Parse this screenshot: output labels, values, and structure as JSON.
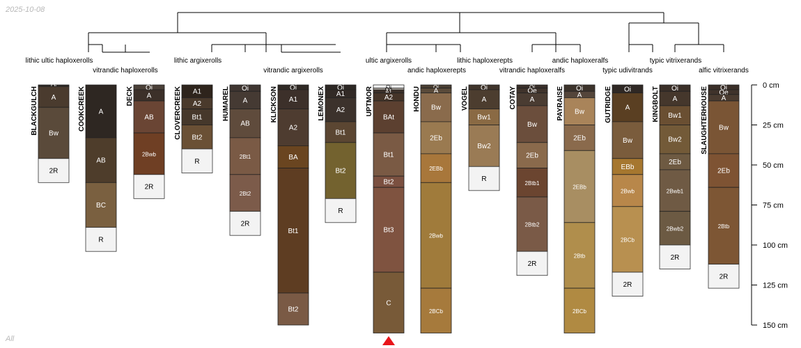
{
  "header": {
    "date": "2025-10-08"
  },
  "footer": {
    "label": "All"
  },
  "depth_axis": {
    "unit": "cm",
    "max": 150,
    "ticks": [
      {
        "value": 0,
        "label": "0 cm"
      },
      {
        "value": 25,
        "label": "25 cm"
      },
      {
        "value": 50,
        "label": "50 cm"
      },
      {
        "value": 75,
        "label": "75 cm"
      },
      {
        "value": 100,
        "label": "100 cm"
      },
      {
        "value": 125,
        "label": "125 cm"
      },
      {
        "value": 150,
        "label": "150 cm"
      }
    ]
  },
  "taxa_labels": [
    {
      "text": "lithic ultic haploxerolls"
    },
    {
      "text": "vitrandic haploxerolls"
    },
    {
      "text": "lithic argixerolls"
    },
    {
      "text": "vitrandic argixerolls"
    },
    {
      "text": "ultic argixerolls"
    },
    {
      "text": "andic haploxerepts"
    },
    {
      "text": "lithic haploxerepts"
    },
    {
      "text": "vitrandic haploxeralfs"
    },
    {
      "text": "andic haploxeralfs"
    },
    {
      "text": "typic udivitrands"
    },
    {
      "text": "typic vitrixerands"
    },
    {
      "text": "alfic vitrixerands"
    }
  ],
  "marker": {
    "profile": "UPTMOR",
    "color": "#e8141a"
  },
  "profiles": [
    {
      "name": "BLACKGULCH",
      "horizons": [
        {
          "name": "Oi",
          "top": 0,
          "bottom": 1,
          "color": "#2f2a25"
        },
        {
          "name": "A",
          "top": 1,
          "bottom": 14,
          "color": "#4a3b2e"
        },
        {
          "name": "Bw",
          "top": 14,
          "bottom": 46,
          "color": "#5a4a3a"
        },
        {
          "name": "2R",
          "top": 46,
          "bottom": 61,
          "color": "#f3f3f3"
        }
      ]
    },
    {
      "name": "COOKCREEK",
      "horizons": [
        {
          "name": "A",
          "top": 0,
          "bottom": 33,
          "color": "#2e2722"
        },
        {
          "name": "AB",
          "top": 33,
          "bottom": 61,
          "color": "#4e3d2b"
        },
        {
          "name": "BC",
          "top": 61,
          "bottom": 89,
          "color": "#7a6040"
        },
        {
          "name": "R",
          "top": 89,
          "bottom": 104,
          "color": "#f3f3f3"
        }
      ]
    },
    {
      "name": "DECK",
      "horizons": [
        {
          "name": "Oi",
          "top": 0,
          "bottom": 3,
          "color": "#4a4038"
        },
        {
          "name": "A",
          "top": 3,
          "bottom": 10,
          "color": "#3c3029"
        },
        {
          "name": "AB",
          "top": 10,
          "bottom": 30,
          "color": "#6a4534"
        },
        {
          "name": "2Bwb",
          "top": 30,
          "bottom": 56,
          "color": "#6f3f24"
        },
        {
          "name": "2R",
          "top": 56,
          "bottom": 71,
          "color": "#f3f3f3"
        }
      ]
    },
    {
      "name": "CLOVERCREEK",
      "horizons": [
        {
          "name": "A1",
          "top": 0,
          "bottom": 8,
          "color": "#2e241c"
        },
        {
          "name": "A2",
          "top": 8,
          "bottom": 15,
          "color": "#4a3a2c"
        },
        {
          "name": "Bt1",
          "top": 15,
          "bottom": 25,
          "color": "#46382b"
        },
        {
          "name": "Bt2",
          "top": 25,
          "bottom": 40,
          "color": "#6a5035"
        },
        {
          "name": "R",
          "top": 40,
          "bottom": 55,
          "color": "#f3f3f3"
        }
      ]
    },
    {
      "name": "HUMAREL",
      "horizons": [
        {
          "name": "Oi",
          "top": 0,
          "bottom": 4,
          "color": "#3f3631"
        },
        {
          "name": "A",
          "top": 4,
          "bottom": 15,
          "color": "#453a33"
        },
        {
          "name": "AB",
          "top": 15,
          "bottom": 33,
          "color": "#5f4b3c"
        },
        {
          "name": "2Bt1",
          "top": 33,
          "bottom": 56,
          "color": "#7a5a45"
        },
        {
          "name": "2Bt2",
          "top": 56,
          "bottom": 79,
          "color": "#7c5b4a"
        },
        {
          "name": "2R",
          "top": 79,
          "bottom": 94,
          "color": "#f3f3f3"
        }
      ]
    },
    {
      "name": "KLICKSON",
      "horizons": [
        {
          "name": "Oi",
          "top": 0,
          "bottom": 3,
          "color": "#2f2924"
        },
        {
          "name": "A1",
          "top": 3,
          "bottom": 15,
          "color": "#3c302a"
        },
        {
          "name": "A2",
          "top": 15,
          "bottom": 38,
          "color": "#4e3c30"
        },
        {
          "name": "BA",
          "top": 38,
          "bottom": 52,
          "color": "#6a4520"
        },
        {
          "name": "Bt1",
          "top": 52,
          "bottom": 130,
          "color": "#5e3d22"
        },
        {
          "name": "Bt2",
          "top": 130,
          "bottom": 150,
          "color": "#7a5a45"
        }
      ]
    },
    {
      "name": "LEMONEX",
      "horizons": [
        {
          "name": "Oi",
          "top": 0,
          "bottom": 3,
          "color": "#2c2724"
        },
        {
          "name": "A1",
          "top": 3,
          "bottom": 8,
          "color": "#322a26"
        },
        {
          "name": "A2",
          "top": 8,
          "bottom": 23,
          "color": "#3c322c"
        },
        {
          "name": "Bt1",
          "top": 23,
          "bottom": 36,
          "color": "#5b4632"
        },
        {
          "name": "Bt2",
          "top": 36,
          "bottom": 71,
          "color": "#73622f"
        },
        {
          "name": "R",
          "top": 71,
          "bottom": 86,
          "color": "#f3f3f3"
        }
      ]
    },
    {
      "name": "UPTMOR",
      "horizons": [
        {
          "name": "Oi",
          "top": 0,
          "bottom": 2,
          "color": "#ffffff"
        },
        {
          "name": "Oe",
          "top": 2,
          "bottom": 3,
          "color": "#c8c0b8"
        },
        {
          "name": "A1",
          "top": 3,
          "bottom": 5,
          "color": "#3c3029"
        },
        {
          "name": "A2",
          "top": 5,
          "bottom": 10,
          "color": "#453428"
        },
        {
          "name": "BAt",
          "top": 10,
          "bottom": 30,
          "color": "#5c4030"
        },
        {
          "name": "Bt1",
          "top": 30,
          "bottom": 57,
          "color": "#7a5a44"
        },
        {
          "name": "Bt2",
          "top": 57,
          "bottom": 64,
          "color": "#7b5040"
        },
        {
          "name": "Bt3",
          "top": 64,
          "bottom": 117,
          "color": "#7f5340"
        },
        {
          "name": "C",
          "top": 117,
          "bottom": 155,
          "color": "#785a38"
        }
      ]
    },
    {
      "name": "HONDU",
      "horizons": [
        {
          "name": "Oi",
          "top": 0,
          "bottom": 2,
          "color": "#4a3f33"
        },
        {
          "name": "A",
          "top": 2,
          "bottom": 5,
          "color": "#5a4a3a"
        },
        {
          "name": "Bw",
          "top": 5,
          "bottom": 23,
          "color": "#8a6b4c"
        },
        {
          "name": "2Eb",
          "top": 23,
          "bottom": 43,
          "color": "#9a7a50"
        },
        {
          "name": "2EBb",
          "top": 43,
          "bottom": 61,
          "color": "#a8773b"
        },
        {
          "name": "2Bwb",
          "top": 61,
          "bottom": 127,
          "color": "#a07b3b"
        },
        {
          "name": "2BCb",
          "top": 127,
          "bottom": 155,
          "color": "#a67a3c"
        }
      ]
    },
    {
      "name": "VOGEL",
      "horizons": [
        {
          "name": "Oi",
          "top": 0,
          "bottom": 3,
          "color": "#3f342b"
        },
        {
          "name": "A",
          "top": 3,
          "bottom": 15,
          "color": "#4c3d2f"
        },
        {
          "name": "Bw1",
          "top": 15,
          "bottom": 25,
          "color": "#8a6a44"
        },
        {
          "name": "Bw2",
          "top": 25,
          "bottom": 51,
          "color": "#9a7b55"
        },
        {
          "name": "R",
          "top": 51,
          "bottom": 66,
          "color": "#f3f3f3"
        }
      ]
    },
    {
      "name": "COTAY",
      "horizons": [
        {
          "name": "Oi",
          "top": 0,
          "bottom": 2,
          "color": "#3a302a"
        },
        {
          "name": "Oe",
          "top": 2,
          "bottom": 5,
          "color": "#3f332b"
        },
        {
          "name": "A",
          "top": 5,
          "bottom": 13,
          "color": "#4a3c32"
        },
        {
          "name": "Bw",
          "top": 13,
          "bottom": 36,
          "color": "#6b4e3c"
        },
        {
          "name": "2Eb",
          "top": 36,
          "bottom": 52,
          "color": "#8a6a4c"
        },
        {
          "name": "2Btb1",
          "top": 52,
          "bottom": 70,
          "color": "#6b4530"
        },
        {
          "name": "2Btb2",
          "top": 70,
          "bottom": 104,
          "color": "#7a5a47"
        },
        {
          "name": "2R",
          "top": 104,
          "bottom": 119,
          "color": "#f3f3f3"
        }
      ]
    },
    {
      "name": "PAYRAISE",
      "horizons": [
        {
          "name": "Oi",
          "top": 0,
          "bottom": 4,
          "color": "#3c332b"
        },
        {
          "name": "A",
          "top": 4,
          "bottom": 8,
          "color": "#54453a"
        },
        {
          "name": "Bw",
          "top": 8,
          "bottom": 25,
          "color": "#a9845a"
        },
        {
          "name": "2Eb",
          "top": 25,
          "bottom": 41,
          "color": "#8a6a4c"
        },
        {
          "name": "2EBb",
          "top": 41,
          "bottom": 86,
          "color": "#a88e62"
        },
        {
          "name": "2Btb",
          "top": 86,
          "bottom": 127,
          "color": "#b08e4c"
        },
        {
          "name": "2BCb",
          "top": 127,
          "bottom": 155,
          "color": "#b08a42"
        }
      ]
    },
    {
      "name": "GUTRIDGE",
      "horizons": [
        {
          "name": "Oi",
          "top": 0,
          "bottom": 5,
          "color": "#2f2824"
        },
        {
          "name": "A",
          "top": 5,
          "bottom": 23,
          "color": "#5a3f22"
        },
        {
          "name": "Bw",
          "top": 23,
          "bottom": 46,
          "color": "#7a5c3c"
        },
        {
          "name": "EBb",
          "top": 46,
          "bottom": 56,
          "color": "#a6772f"
        },
        {
          "name": "2Bwb",
          "top": 56,
          "bottom": 76,
          "color": "#b8874a"
        },
        {
          "name": "2BCb",
          "top": 76,
          "bottom": 117,
          "color": "#b89050"
        },
        {
          "name": "2R",
          "top": 117,
          "bottom": 132,
          "color": "#f3f3f3"
        }
      ]
    },
    {
      "name": "KINGBOLT",
      "horizons": [
        {
          "name": "Oi",
          "top": 0,
          "bottom": 4,
          "color": "#3a2f28"
        },
        {
          "name": "A",
          "top": 4,
          "bottom": 13,
          "color": "#45372c"
        },
        {
          "name": "Bw1",
          "top": 13,
          "bottom": 25,
          "color": "#6a4f32"
        },
        {
          "name": "Bw2",
          "top": 25,
          "bottom": 43,
          "color": "#735a38"
        },
        {
          "name": "2Eb",
          "top": 43,
          "bottom": 53,
          "color": "#6e5a42"
        },
        {
          "name": "2Bwb1",
          "top": 53,
          "bottom": 79,
          "color": "#6f5a44"
        },
        {
          "name": "2Bwb2",
          "top": 79,
          "bottom": 100,
          "color": "#6c5a43"
        },
        {
          "name": "2R",
          "top": 100,
          "bottom": 115,
          "color": "#f3f3f3"
        }
      ]
    },
    {
      "name": "SLAUGHTERHOUSE",
      "horizons": [
        {
          "name": "Oi",
          "top": 0,
          "bottom": 3,
          "color": "#3a2f28"
        },
        {
          "name": "Oe",
          "top": 3,
          "bottom": 6,
          "color": "#3f332b"
        },
        {
          "name": "A",
          "top": 6,
          "bottom": 10,
          "color": "#4a3b30"
        },
        {
          "name": "Bw",
          "top": 10,
          "bottom": 43,
          "color": "#7a5535"
        },
        {
          "name": "2Eb",
          "top": 43,
          "bottom": 64,
          "color": "#7e5333"
        },
        {
          "name": "2Btb",
          "top": 64,
          "bottom": 112,
          "color": "#7d5634"
        },
        {
          "name": "2R",
          "top": 112,
          "bottom": 127,
          "color": "#f3f3f3"
        }
      ]
    }
  ]
}
